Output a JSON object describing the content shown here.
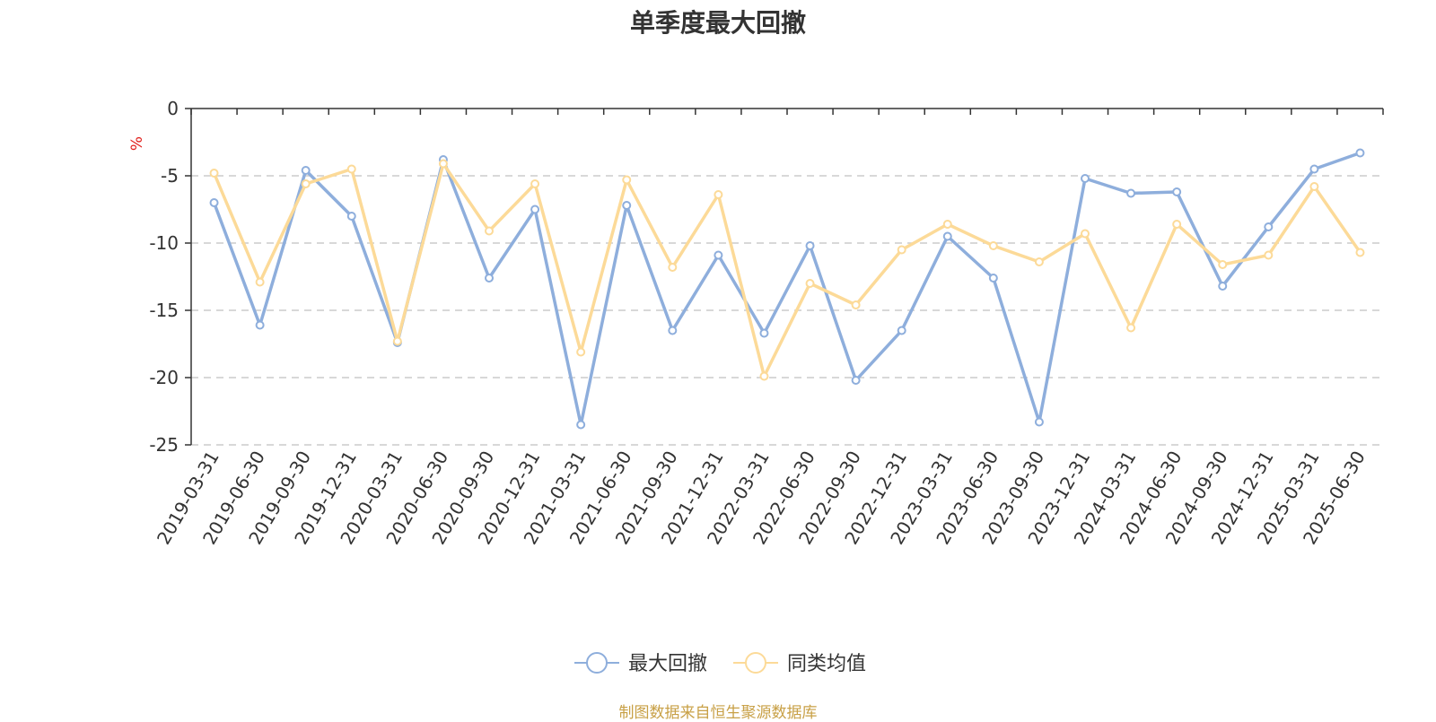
{
  "chart_data": {
    "type": "line",
    "title": "单季度最大回撤",
    "ylabel": "%",
    "ylim": [
      -25,
      0
    ],
    "yticks": [
      0,
      -5,
      -10,
      -15,
      -20,
      -25
    ],
    "grid": true,
    "legend_position": "bottom-center",
    "categories": [
      "2019-03-31",
      "2019-06-30",
      "2019-09-30",
      "2019-12-31",
      "2020-03-31",
      "2020-06-30",
      "2020-09-30",
      "2020-12-31",
      "2021-03-31",
      "2021-06-30",
      "2021-09-30",
      "2021-12-31",
      "2022-03-31",
      "2022-06-30",
      "2022-09-30",
      "2022-12-31",
      "2023-03-31",
      "2023-06-30",
      "2023-09-30",
      "2023-12-31",
      "2024-03-31",
      "2024-06-30",
      "2024-09-30",
      "2024-12-31",
      "2025-03-31",
      "2025-06-30"
    ],
    "series": [
      {
        "name": "最大回撤",
        "color": "#8eaedc",
        "values": [
          -7.0,
          -16.1,
          -4.6,
          -8.0,
          -17.4,
          -3.8,
          -12.6,
          -7.5,
          -23.5,
          -7.2,
          -16.5,
          -10.9,
          -16.7,
          -10.2,
          -20.2,
          -16.5,
          -9.5,
          -12.6,
          -23.3,
          -5.2,
          -6.3,
          -6.2,
          -13.2,
          -8.8,
          -4.5,
          -3.3
        ]
      },
      {
        "name": "同类均值",
        "color": "#fcda98",
        "values": [
          -4.8,
          -12.9,
          -5.6,
          -4.5,
          -17.3,
          -4.1,
          -9.1,
          -5.6,
          -18.1,
          -5.3,
          -11.8,
          -6.4,
          -19.9,
          -13.0,
          -14.6,
          -10.5,
          -8.6,
          -10.2,
          -11.4,
          -9.3,
          -16.3,
          -8.6,
          -11.6,
          -10.9,
          -5.8,
          -10.7
        ]
      }
    ]
  },
  "source_note": "制图数据来自恒生聚源数据库"
}
